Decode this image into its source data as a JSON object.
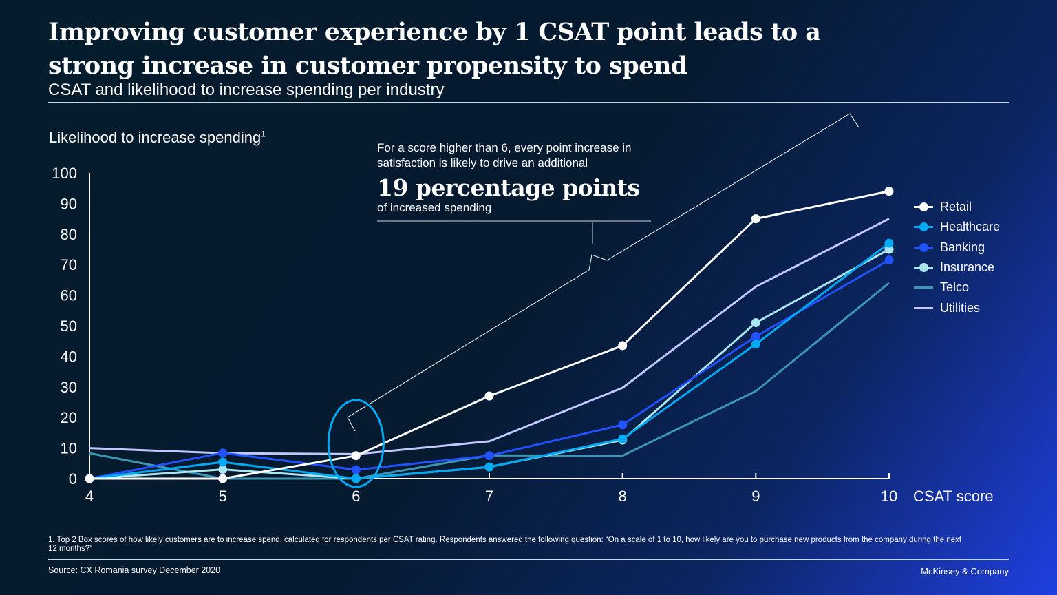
{
  "title": "Improving customer experience by 1 CSAT point leads to a strong increase in customer propensity to spend",
  "subtitle": "CSAT and likelihood to increase spending per industry",
  "callout": {
    "text": "For a score higher than 6, every point increase in satisfaction is likely to drive an additional",
    "highlight": "19 percentage points",
    "suffix": "of increased spending"
  },
  "footnote": "1. Top 2 Box scores of how likely customers are to increase spend, calculated for respondents per CSAT rating. Respondents answered the following question: “On a scale of 1 to 10, how likely are you to purchase new products from the company during the next 12 months?”",
  "source": "Source: CX Romania survey December 2020",
  "brand": "McKinsey & Company",
  "chart_data": {
    "type": "line",
    "title": "Improving customer experience by 1 CSAT point leads to a strong increase in customer propensity to spend",
    "subtitle": "CSAT and likelihood to increase spending per industry",
    "xlabel": "CSAT score",
    "ylabel": "Likelihood to increase spending",
    "ylabel_sup": "1",
    "x": [
      4,
      5,
      6,
      7,
      8,
      9,
      10
    ],
    "xlim": [
      4,
      10
    ],
    "ylim": [
      0,
      100
    ],
    "yticks": [
      0,
      10,
      20,
      30,
      40,
      50,
      60,
      70,
      80,
      90,
      100
    ],
    "grid": false,
    "legend": "right",
    "series": [
      {
        "name": "Retail",
        "color": "#ffffff",
        "markers": true,
        "values": [
          0,
          0,
          7.5,
          27,
          43.5,
          85,
          94
        ]
      },
      {
        "name": "Healthcare",
        "color": "#00a9f4",
        "markers": true,
        "values": [
          0,
          5.4,
          0,
          3.8,
          13,
          44,
          77
        ]
      },
      {
        "name": "Banking",
        "color": "#2251ff",
        "markers": true,
        "values": [
          0,
          8.4,
          2.9,
          7.5,
          17.6,
          46.5,
          71.5
        ]
      },
      {
        "name": "Insurance",
        "color": "#aae6f0",
        "markers": true,
        "values": [
          0,
          3,
          0,
          3.8,
          12.6,
          51,
          75
        ]
      },
      {
        "name": "Telco",
        "color": "#3c96b4",
        "markers": false,
        "values": [
          8.3,
          0,
          0,
          7.6,
          7.5,
          28.6,
          64
        ]
      },
      {
        "name": "Utilities",
        "color": "#c0c8ff",
        "markers": false,
        "values": [
          10,
          8.3,
          8,
          12.2,
          29.7,
          62.8,
          85
        ]
      }
    ],
    "highlight": {
      "x": 6,
      "shape": "ellipse",
      "color": "#00a9f4"
    }
  }
}
